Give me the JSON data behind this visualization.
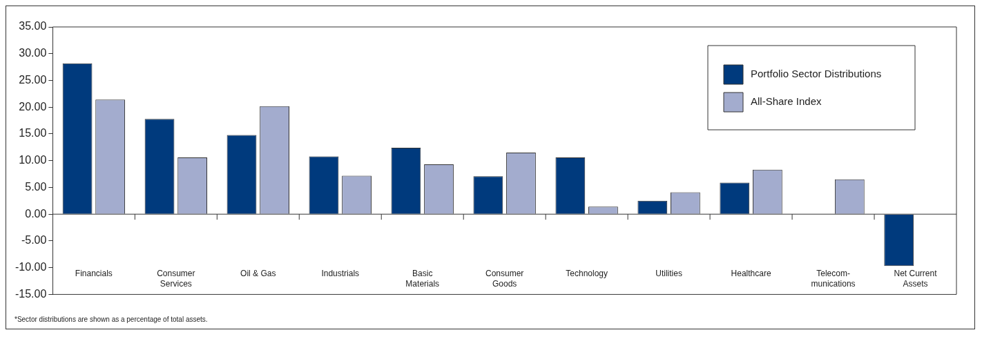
{
  "chart_data": {
    "type": "bar",
    "categories": [
      "Financials",
      "Consumer\nServices",
      "Oil & Gas",
      "Industrials",
      "Basic\nMaterials",
      "Consumer\nGoods",
      "Technology",
      "Utilities",
      "Healthcare",
      "Telecom-\nmunications",
      "Net Current\nAssets"
    ],
    "series": [
      {
        "name": "Portfolio Sector Distributions",
        "color": "#003a7d",
        "values": [
          28.2,
          17.8,
          14.8,
          10.8,
          12.4,
          7.1,
          10.6,
          2.5,
          5.9,
          0,
          -9.7
        ]
      },
      {
        "name": "All-Share Index",
        "color": "#a3acce",
        "values": [
          21.4,
          10.6,
          20.2,
          7.2,
          9.3,
          11.5,
          1.4,
          4.1,
          8.3,
          6.5,
          0
        ]
      }
    ],
    "ylim": [
      -15,
      35
    ],
    "yticks": [
      {
        "value": 35,
        "label": "35.00"
      },
      {
        "value": 30,
        "label": "30.00"
      },
      {
        "value": 25,
        "label": "25.00"
      },
      {
        "value": 20,
        "label": "20.00"
      },
      {
        "value": 15,
        "label": "15.00"
      },
      {
        "value": 10,
        "label": "10.00"
      },
      {
        "value": 5,
        "label": "5.00"
      },
      {
        "value": 0,
        "label": "0.00"
      },
      {
        "value": -5,
        "label": "-5.00"
      },
      {
        "value": -10,
        "label": "-10.00"
      },
      {
        "value": -15,
        "label": "-15.00"
      }
    ],
    "legend": "top right",
    "annotations": [
      "*Sector distributions are shown as a percentage of total assets."
    ]
  }
}
